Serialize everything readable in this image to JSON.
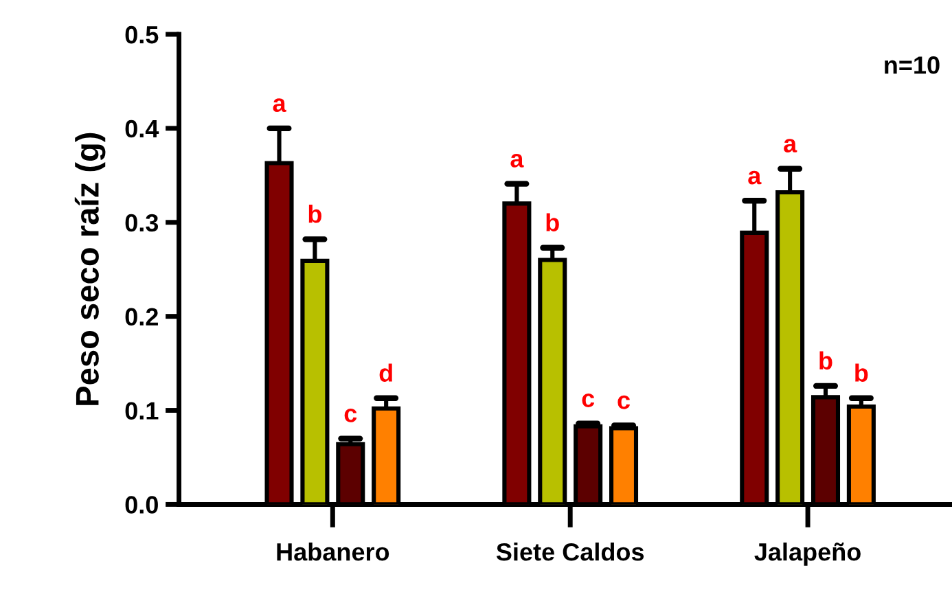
{
  "chart_data": {
    "type": "bar",
    "ylabel": "Peso seco raíz (g)",
    "categories": [
      "Habanero",
      "Siete Caldos",
      "Jalapeño"
    ],
    "ylim": [
      0,
      0.5
    ],
    "yticks": [
      {
        "value": 0,
        "label": "0.0"
      },
      {
        "value": 0.1,
        "label": "0.1"
      },
      {
        "value": 0.2,
        "label": "0.2"
      },
      {
        "value": 0.3,
        "label": "0.3"
      },
      {
        "value": 0.4,
        "label": "0.4"
      },
      {
        "value": 0.5,
        "label": "0.5"
      }
    ],
    "grid": false,
    "legend": false,
    "annotations": [
      "n=10"
    ],
    "series": [
      {
        "color": "#800000",
        "values": [
          0.363,
          0.32,
          0.289
        ],
        "errors": [
          [
            0.363,
            0.4
          ],
          [
            0.32,
            0.341
          ],
          [
            0.289,
            0.323
          ]
        ],
        "value_labels": [
          "a",
          "a",
          "a"
        ]
      },
      {
        "color": "#b8c000",
        "values": [
          0.259,
          0.26,
          0.332
        ],
        "errors": [
          [
            0.259,
            0.282
          ],
          [
            0.26,
            0.273
          ],
          [
            0.332,
            0.357
          ]
        ],
        "value_labels": [
          "b",
          "b",
          "a"
        ]
      },
      {
        "color": "#5c0000",
        "values": [
          0.064,
          0.083,
          0.114
        ],
        "errors": [
          [
            0.064,
            0.07
          ],
          [
            0.083,
            0.086
          ],
          [
            0.114,
            0.126
          ]
        ],
        "value_labels": [
          "c",
          "c",
          "b"
        ]
      },
      {
        "color": "#ff8000",
        "values": [
          0.102,
          0.081,
          0.104
        ],
        "errors": [
          [
            0.102,
            0.113
          ],
          [
            0.081,
            0.084
          ],
          [
            0.104,
            0.113
          ]
        ],
        "value_labels": [
          "d",
          "c",
          "b"
        ]
      }
    ]
  }
}
